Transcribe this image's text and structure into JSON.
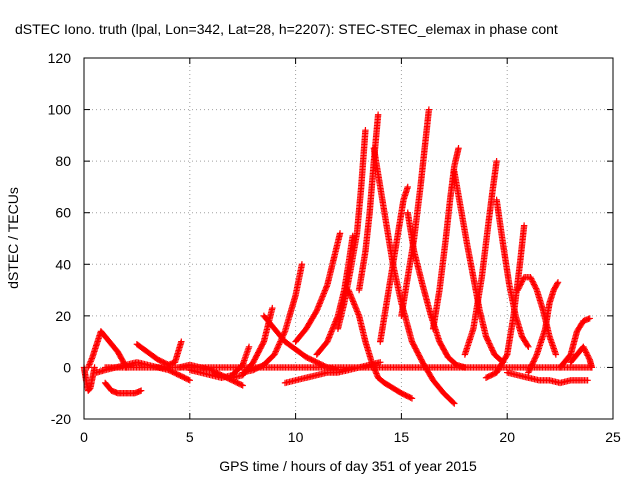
{
  "chart_data": {
    "type": "scatter",
    "title": "dSTEC Iono. truth (lpal, Lon=342, Lat=28, h=2207): STEC-STEC_elemax in phase cont",
    "xlabel": "GPS time / hours of day 351 of year 2015",
    "ylabel": "dSTEC  / TECUs",
    "xlim": [
      0,
      25
    ],
    "ylim": [
      -20,
      120
    ],
    "xticks": [
      0,
      5,
      10,
      15,
      20,
      25
    ],
    "yticks": [
      -20,
      0,
      20,
      40,
      60,
      80,
      100,
      120
    ],
    "xtick_labels": [
      "0",
      "5",
      "10",
      "15",
      "20",
      "25"
    ],
    "ytick_labels": [
      "-20",
      "0",
      "20",
      "40",
      "60",
      "80",
      "100",
      "120"
    ],
    "grid": true,
    "marker": "+",
    "color": "#ff0000",
    "series": [
      {
        "x": [
          0.0,
          0.1,
          0.2,
          0.3,
          0.4,
          0.5
        ],
        "values": [
          0,
          -5,
          -9,
          -8,
          -4,
          0
        ]
      },
      {
        "x": [
          0.2,
          0.4,
          0.6,
          0.8,
          1.0,
          1.2,
          1.4,
          1.6,
          1.8,
          2.0
        ],
        "values": [
          0,
          4,
          9,
          14,
          12,
          10,
          8,
          6,
          3,
          0
        ]
      },
      {
        "x": [
          1.0,
          1.3,
          1.6,
          2.0,
          2.4,
          2.7
        ],
        "values": [
          -6,
          -9,
          -10,
          -10,
          -10,
          -9
        ]
      },
      {
        "x": [
          0.6,
          1.0,
          1.5,
          2.0,
          2.5,
          3.0,
          3.5,
          4.0,
          4.5,
          5.0
        ],
        "values": [
          -2,
          -1,
          0,
          1,
          2,
          1,
          0,
          -1,
          -3,
          -5
        ]
      },
      {
        "x": [
          2.5,
          3.0,
          3.5,
          4.0,
          4.3,
          4.6
        ],
        "values": [
          9,
          6,
          3,
          1,
          2,
          10
        ]
      },
      {
        "x": [
          4.5,
          5.0,
          5.5,
          6.0,
          6.5,
          7.0,
          7.5
        ],
        "values": [
          0,
          1,
          0,
          -1,
          -3,
          -5,
          -7
        ]
      },
      {
        "x": [
          5.0,
          5.5,
          6.0,
          6.5,
          7.0,
          7.5,
          7.8
        ],
        "values": [
          -1,
          -2,
          -3,
          -4,
          -3,
          1,
          8
        ]
      },
      {
        "x": [
          7.0,
          7.5,
          8.0,
          8.5,
          8.9
        ],
        "values": [
          -4,
          -3,
          2,
          10,
          23
        ]
      },
      {
        "x": [
          7.5,
          8.0,
          8.5,
          9.0,
          9.5,
          10.0,
          10.3
        ],
        "values": [
          -2,
          -1,
          1,
          5,
          14,
          28,
          40
        ]
      },
      {
        "x": [
          8.5,
          9.0,
          9.5,
          10.0,
          10.5,
          11.0,
          11.5,
          12.0
        ],
        "values": [
          20,
          15,
          10,
          7,
          4,
          2,
          0,
          -1
        ]
      },
      {
        "x": [
          10.0,
          10.5,
          11.0,
          11.5,
          11.8,
          12.1
        ],
        "values": [
          10,
          15,
          22,
          32,
          42,
          52
        ]
      },
      {
        "x": [
          11.0,
          11.5,
          12.0,
          12.3,
          12.5,
          12.7
        ],
        "values": [
          5,
          10,
          20,
          30,
          40,
          51
        ]
      },
      {
        "x": [
          12.0,
          12.3,
          12.6,
          12.9,
          13.1,
          13.3
        ],
        "values": [
          15,
          25,
          38,
          52,
          70,
          92
        ]
      },
      {
        "x": [
          13.0,
          13.3,
          13.5,
          13.7,
          13.9
        ],
        "values": [
          30,
          45,
          60,
          80,
          98
        ]
      },
      {
        "x": [
          13.7,
          14.0,
          14.3,
          14.6,
          15.0,
          15.5,
          16.0,
          16.5,
          17.0,
          17.5
        ],
        "values": [
          85,
          70,
          55,
          40,
          25,
          10,
          2,
          -5,
          -10,
          -14
        ]
      },
      {
        "x": [
          9.5,
          10.0,
          10.5,
          11.0,
          11.5,
          12.0,
          12.5,
          13.0,
          13.5,
          14.0
        ],
        "values": [
          -6,
          -5,
          -4,
          -3,
          -2,
          -2,
          -1,
          0,
          1,
          2
        ]
      },
      {
        "x": [
          12.5,
          13.0,
          13.3,
          13.6,
          13.9,
          14.2,
          14.6,
          15.0,
          15.5
        ],
        "values": [
          30,
          20,
          10,
          2,
          -4,
          -6,
          -8,
          -10,
          -12
        ]
      },
      {
        "x": [
          14.0,
          14.3,
          14.6,
          14.9,
          15.1,
          15.3
        ],
        "values": [
          10,
          25,
          40,
          55,
          65,
          70
        ]
      },
      {
        "x": [
          15.0,
          15.3,
          15.6,
          15.9,
          16.1,
          16.3
        ],
        "values": [
          20,
          35,
          50,
          70,
          85,
          100
        ]
      },
      {
        "x": [
          15.3,
          15.6,
          16.0,
          16.4,
          16.8,
          17.2,
          17.6,
          18.0
        ],
        "values": [
          60,
          45,
          32,
          20,
          10,
          4,
          1,
          0
        ]
      },
      {
        "x": [
          16.5,
          16.8,
          17.1,
          17.3,
          17.5,
          17.7
        ],
        "values": [
          15,
          30,
          50,
          65,
          78,
          85
        ]
      },
      {
        "x": [
          17.5,
          17.8,
          18.1,
          18.4,
          18.7,
          19.0,
          19.4,
          19.8
        ],
        "values": [
          76,
          62,
          48,
          35,
          22,
          12,
          5,
          2
        ]
      },
      {
        "x": [
          18.0,
          18.4,
          18.8,
          19.1,
          19.3,
          19.5
        ],
        "values": [
          5,
          15,
          35,
          55,
          68,
          80
        ]
      },
      {
        "x": [
          19.5,
          19.8,
          20.1,
          20.4,
          20.7,
          21.0
        ],
        "values": [
          65,
          48,
          32,
          20,
          12,
          8
        ]
      },
      {
        "x": [
          19.0,
          19.5,
          20.0,
          20.3,
          20.6,
          20.8
        ],
        "values": [
          -4,
          -2,
          5,
          20,
          40,
          55
        ]
      },
      {
        "x": [
          20.5,
          20.8,
          21.1,
          21.4,
          21.7,
          22.0,
          22.3
        ],
        "values": [
          30,
          35,
          35,
          30,
          22,
          12,
          5
        ]
      },
      {
        "x": [
          21.0,
          21.4,
          21.8,
          22.0,
          22.2,
          22.4
        ],
        "values": [
          -2,
          5,
          15,
          25,
          30,
          33
        ]
      },
      {
        "x": [
          20.0,
          20.5,
          21.0,
          21.5,
          22.0,
          22.5,
          23.0,
          23.5,
          23.8
        ],
        "values": [
          -2,
          -3,
          -4,
          -5,
          -5,
          -6,
          -5,
          -5,
          -5
        ]
      },
      {
        "x": [
          22.5,
          23.0,
          23.3,
          23.6,
          23.9
        ],
        "values": [
          0,
          5,
          14,
          18,
          19
        ]
      },
      {
        "x": [
          23.0,
          23.3,
          23.6,
          23.9,
          24.0
        ],
        "values": [
          2,
          5,
          8,
          3,
          0
        ]
      },
      {
        "x": [
          1.0,
          3.0,
          5.0,
          7.0,
          9.0,
          11.0,
          13.0,
          15.0,
          17.0,
          19.0,
          21.0,
          23.0,
          24.0
        ],
        "values": [
          0,
          0,
          0,
          0,
          0,
          0,
          0,
          0,
          0,
          0,
          0,
          0,
          0
        ]
      }
    ]
  }
}
